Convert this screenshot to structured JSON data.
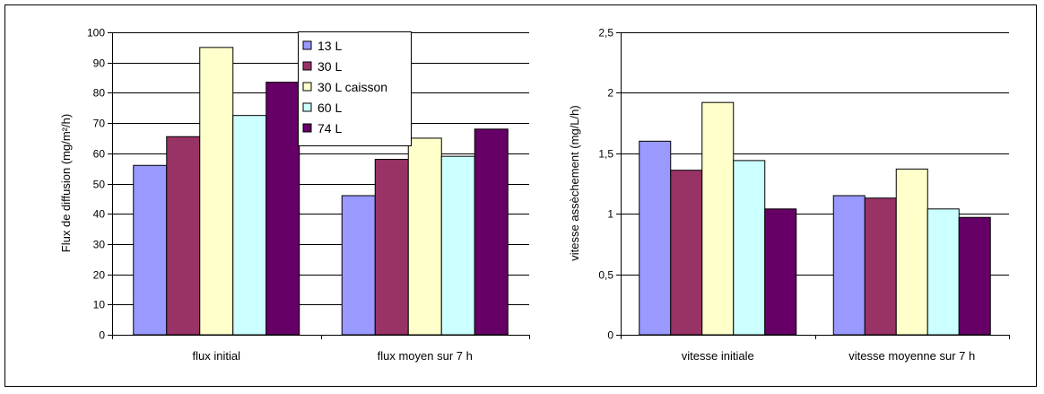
{
  "chart_data": [
    {
      "type": "bar",
      "categories": [
        "flux initial",
        "flux moyen sur 7 h"
      ],
      "series": [
        {
          "name": "13 L",
          "values": [
            56,
            46
          ],
          "color": "#9999ff"
        },
        {
          "name": "30 L",
          "values": [
            65.5,
            58
          ],
          "color": "#993366"
        },
        {
          "name": "30 L caisson",
          "values": [
            95,
            65
          ],
          "color": "#ffffcc"
        },
        {
          "name": "60 L",
          "values": [
            72.5,
            59
          ],
          "color": "#ccffff"
        },
        {
          "name": "74 L",
          "values": [
            83.5,
            68
          ],
          "color": "#660066"
        }
      ],
      "title": "",
      "xlabel": "",
      "ylabel": "Flux de diffusion (mg/m²/h)",
      "ylim": [
        0,
        100
      ],
      "yticks": [
        "0",
        "10",
        "20",
        "30",
        "40",
        "50",
        "60",
        "70",
        "80",
        "90",
        "100"
      ],
      "grid": true,
      "legend": "top-center"
    },
    {
      "type": "bar",
      "categories": [
        "vitesse initiale",
        "vitesse moyenne sur 7 h"
      ],
      "series": [
        {
          "name": "13 L",
          "values": [
            1.6,
            1.15
          ],
          "color": "#9999ff"
        },
        {
          "name": "30 L",
          "values": [
            1.36,
            1.13
          ],
          "color": "#993366"
        },
        {
          "name": "30 L caisson",
          "values": [
            1.92,
            1.37
          ],
          "color": "#ffffcc"
        },
        {
          "name": "60 L",
          "values": [
            1.44,
            1.04
          ],
          "color": "#ccffff"
        },
        {
          "name": "74 L",
          "values": [
            1.04,
            0.97
          ],
          "color": "#660066"
        }
      ],
      "title": "",
      "xlabel": "",
      "ylabel": "vitesse assèchement (mg/L/h)",
      "ylim": [
        0,
        2.5
      ],
      "yticks": [
        "0",
        "0,5",
        "1",
        "1,5",
        "2",
        "2,5"
      ],
      "grid": true,
      "legend": "none"
    }
  ]
}
